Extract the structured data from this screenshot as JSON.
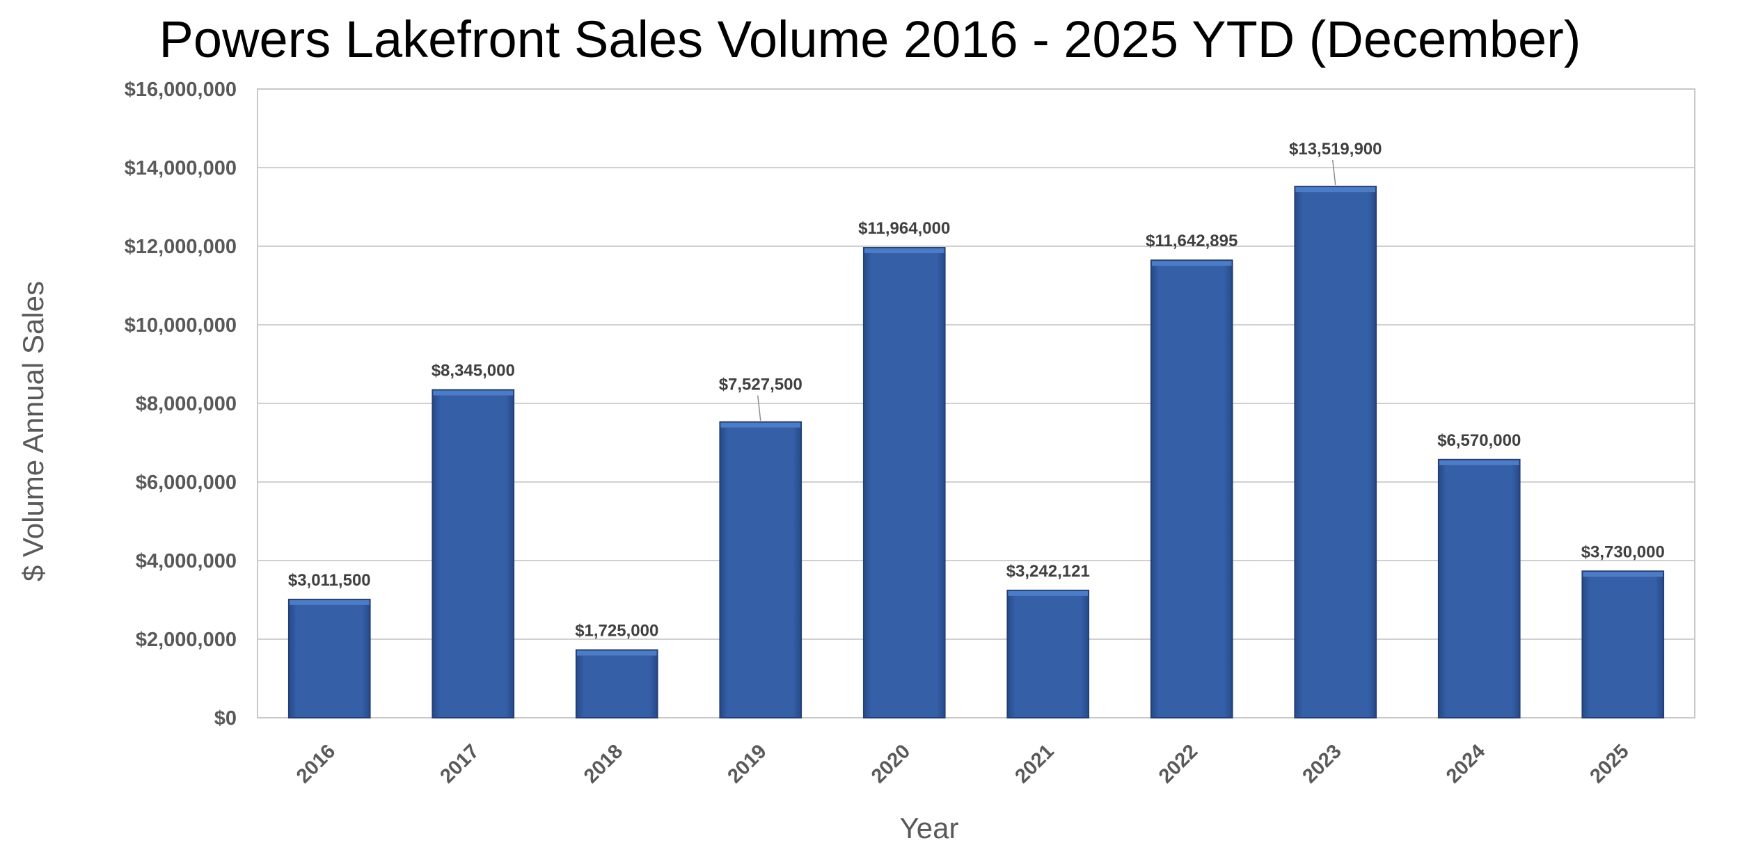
{
  "chart_data": {
    "type": "bar",
    "title": "Powers Lakefront Sales Volume 2016 - 2025 YTD (December)",
    "xlabel": "Year",
    "ylabel": "$ Volume Annual Sales",
    "categories": [
      "2016",
      "2017",
      "2018",
      "2019",
      "2020",
      "2021",
      "2022",
      "2023",
      "2024",
      "2025"
    ],
    "values": [
      3011500,
      8345000,
      1725000,
      7527500,
      11964000,
      3242121,
      11642895,
      13519900,
      6570000,
      3730000
    ],
    "data_labels": [
      "$3,011,500",
      "$8,345,000",
      "$1,725,000",
      "$7,527,500",
      "$11,964,000",
      "$3,242,121",
      "$11,642,895",
      "$13,519,900",
      "$6,570,000",
      "$3,730,000"
    ],
    "ylim": [
      0,
      16000000
    ],
    "yticks": [
      0,
      2000000,
      4000000,
      6000000,
      8000000,
      10000000,
      12000000,
      14000000,
      16000000
    ],
    "ytick_labels": [
      "$0",
      "$2,000,000",
      "$4,000,000",
      "$6,000,000",
      "$8,000,000",
      "$10,000,000",
      "$12,000,000",
      "$14,000,000",
      "$16,000,000"
    ],
    "grid": true,
    "legend": "none",
    "colors": {
      "bar": "#3560a8",
      "bar_edge": "#243f73",
      "gridline": "#d0d0d0",
      "tick_text": "#595959",
      "label_text": "#404040",
      "title_text": "#000000"
    }
  }
}
